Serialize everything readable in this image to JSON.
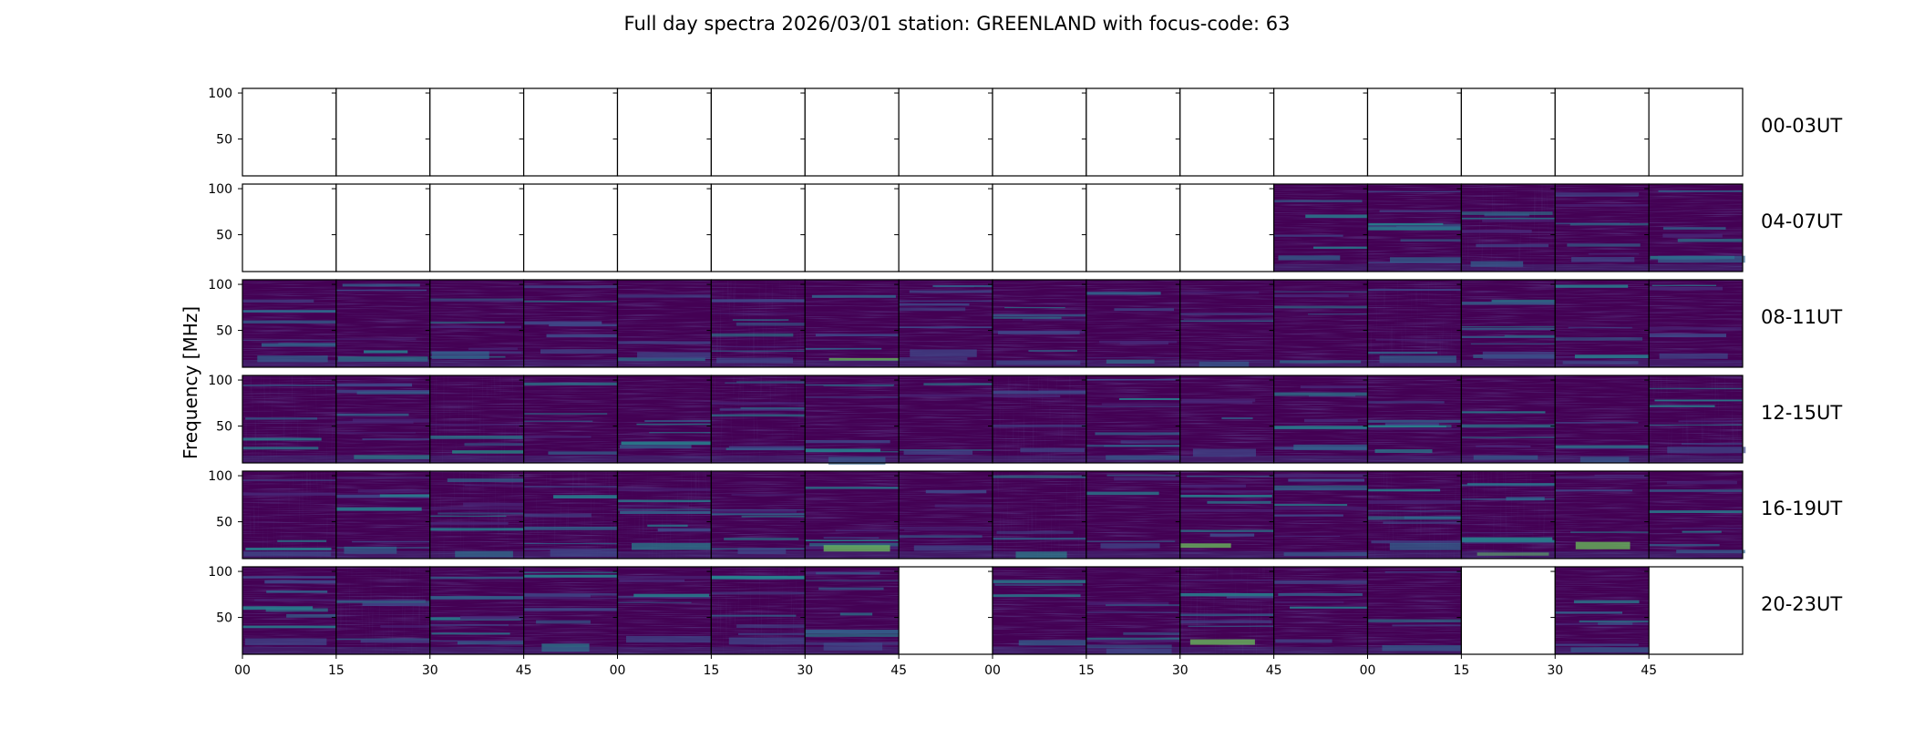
{
  "chart_data": {
    "type": "heatmap",
    "title": "Full day spectra 2026/03/01 station: GREENLAND with focus-code: 63",
    "ylabel": "Frequency [MHz]",
    "xlabel": "",
    "ylim": [
      10,
      105
    ],
    "yticks": [
      50,
      100
    ],
    "xticks": [
      "00",
      "15",
      "30",
      "45",
      "00",
      "15",
      "30",
      "45",
      "00",
      "15",
      "30",
      "45",
      "00",
      "15",
      "30",
      "45"
    ],
    "columns_per_row": 16,
    "minutes_per_panel": 15,
    "colormap": [
      "#440154",
      "#482777",
      "#3f4a8a",
      "#31678e",
      "#26838f",
      "#1f9d8a",
      "#6cce5a",
      "#b6de2b",
      "#fee825"
    ],
    "rows": [
      {
        "label": "00-03UT",
        "has_data": [
          0,
          0,
          0,
          0,
          0,
          0,
          0,
          0,
          0,
          0,
          0,
          0,
          0,
          0,
          0,
          0
        ]
      },
      {
        "label": "04-07UT",
        "has_data": [
          0,
          0,
          0,
          0,
          0,
          0,
          0,
          0,
          0,
          0,
          0,
          1,
          1,
          1,
          1,
          1
        ]
      },
      {
        "label": "08-11UT",
        "has_data": [
          1,
          1,
          1,
          1,
          1,
          1,
          1,
          1,
          1,
          1,
          1,
          1,
          1,
          1,
          1,
          1
        ]
      },
      {
        "label": "12-15UT",
        "has_data": [
          1,
          1,
          1,
          1,
          1,
          1,
          1,
          1,
          1,
          1,
          1,
          1,
          1,
          1,
          1,
          1
        ]
      },
      {
        "label": "16-19UT",
        "has_data": [
          1,
          1,
          1,
          1,
          1,
          1,
          1,
          1,
          1,
          1,
          1,
          1,
          1,
          1,
          1,
          1
        ]
      },
      {
        "label": "20-23UT",
        "has_data": [
          1,
          1,
          1,
          1,
          1,
          1,
          1,
          0,
          1,
          1,
          1,
          1,
          1,
          0,
          1,
          0
        ]
      }
    ]
  }
}
